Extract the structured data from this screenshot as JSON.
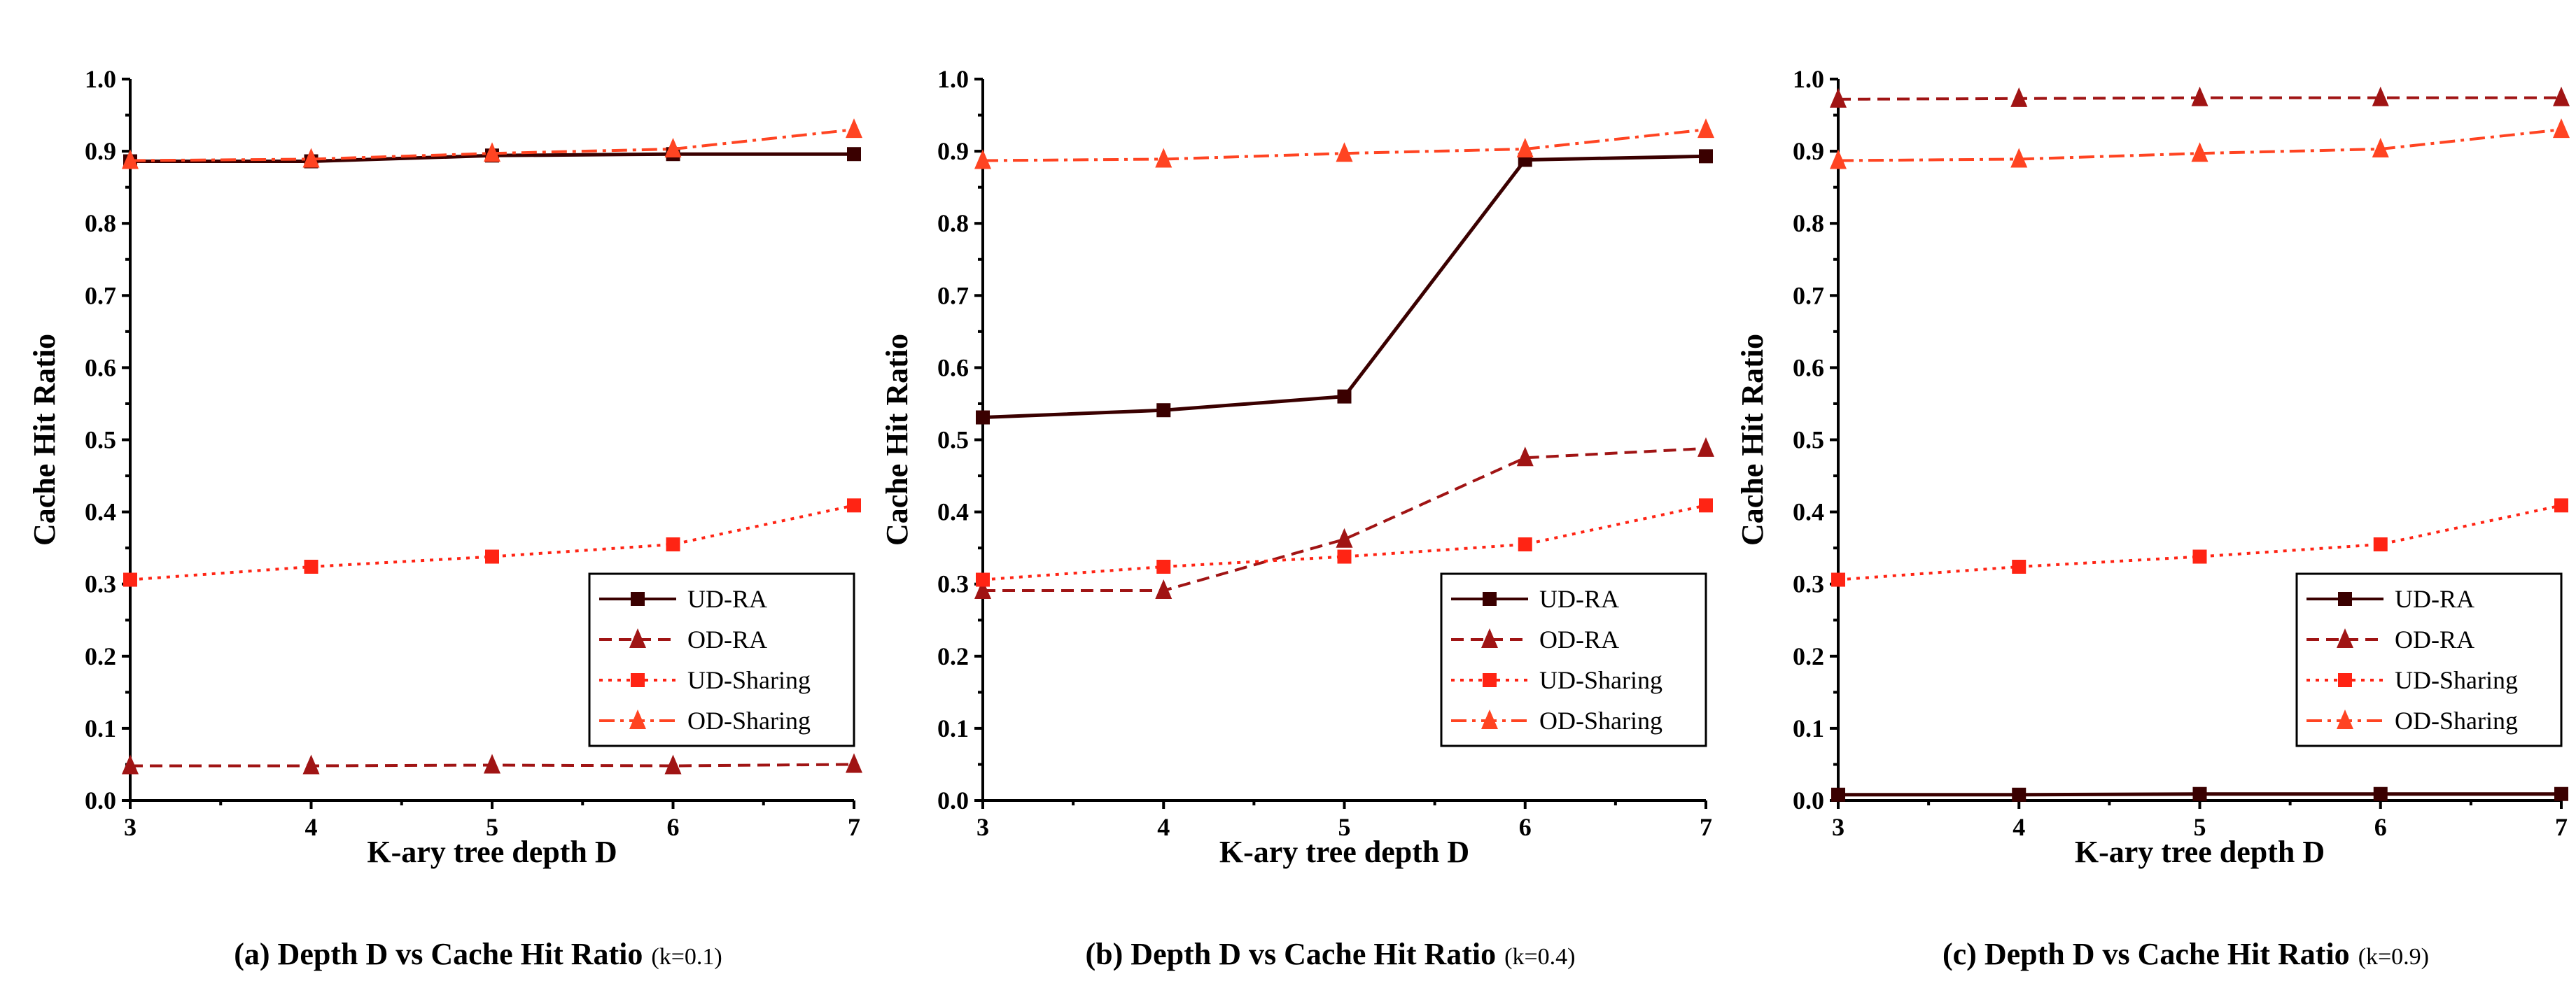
{
  "chart_data": [
    {
      "type": "line",
      "caption": "(a) Depth D vs Cache Hit Ratio",
      "caption_param": "(k=0.1)",
      "xlabel": "K-ary tree depth D",
      "ylabel": "Cache Hit Ratio",
      "x": [
        3,
        4,
        5,
        6,
        7
      ],
      "xlim": [
        3,
        7
      ],
      "ylim": [
        0,
        1.0
      ],
      "yticks": [
        "0.0",
        "0.1",
        "0.2",
        "0.3",
        "0.4",
        "0.5",
        "0.6",
        "0.7",
        "0.8",
        "0.9",
        "1.0"
      ],
      "xticks": [
        "3",
        "4",
        "5",
        "6",
        "7"
      ],
      "legend_position": "lower-right",
      "series": [
        {
          "name": "UD-RA",
          "values": [
            0.886,
            0.886,
            0.894,
            0.896,
            0.896
          ]
        },
        {
          "name": "OD-RA",
          "values": [
            0.048,
            0.048,
            0.049,
            0.048,
            0.05
          ]
        },
        {
          "name": "UD-Sharing",
          "values": [
            0.306,
            0.324,
            0.338,
            0.355,
            0.409
          ]
        },
        {
          "name": "OD-Sharing",
          "values": [
            0.887,
            0.889,
            0.897,
            0.903,
            0.93
          ]
        }
      ]
    },
    {
      "type": "line",
      "caption": "(b) Depth D vs Cache Hit Ratio",
      "caption_param": "(k=0.4)",
      "xlabel": "K-ary tree depth D",
      "ylabel": "Cache Hit Ratio",
      "x": [
        3,
        4,
        5,
        6,
        7
      ],
      "xlim": [
        3,
        7
      ],
      "ylim": [
        0,
        1.0
      ],
      "yticks": [
        "0.0",
        "0.1",
        "0.2",
        "0.3",
        "0.4",
        "0.5",
        "0.6",
        "0.7",
        "0.8",
        "0.9",
        "1.0"
      ],
      "xticks": [
        "3",
        "4",
        "5",
        "6",
        "7"
      ],
      "legend_position": "lower-right",
      "series": [
        {
          "name": "UD-RA",
          "values": [
            0.531,
            0.541,
            0.56,
            0.888,
            0.893
          ]
        },
        {
          "name": "OD-RA",
          "values": [
            0.291,
            0.291,
            0.362,
            0.475,
            0.488
          ]
        },
        {
          "name": "UD-Sharing",
          "values": [
            0.306,
            0.324,
            0.338,
            0.355,
            0.409
          ]
        },
        {
          "name": "OD-Sharing",
          "values": [
            0.887,
            0.889,
            0.897,
            0.903,
            0.93
          ]
        }
      ]
    },
    {
      "type": "line",
      "caption": "(c) Depth D vs Cache Hit Ratio",
      "caption_param": "(k=0.9)",
      "xlabel": "K-ary tree depth D",
      "ylabel": "Cache Hit Ratio",
      "x": [
        3,
        4,
        5,
        6,
        7
      ],
      "xlim": [
        3,
        7
      ],
      "ylim": [
        0,
        1.0
      ],
      "yticks": [
        "0.0",
        "0.1",
        "0.2",
        "0.3",
        "0.4",
        "0.5",
        "0.6",
        "0.7",
        "0.8",
        "0.9",
        "1.0"
      ],
      "xticks": [
        "3",
        "4",
        "5",
        "6",
        "7"
      ],
      "legend_position": "lower-right",
      "series": [
        {
          "name": "UD-RA",
          "values": [
            0.008,
            0.008,
            0.009,
            0.009,
            0.009
          ]
        },
        {
          "name": "OD-RA",
          "values": [
            0.972,
            0.973,
            0.974,
            0.974,
            0.974
          ]
        },
        {
          "name": "UD-Sharing",
          "values": [
            0.306,
            0.324,
            0.338,
            0.355,
            0.409
          ]
        },
        {
          "name": "OD-Sharing",
          "values": [
            0.887,
            0.889,
            0.897,
            0.903,
            0.93
          ]
        }
      ]
    }
  ],
  "series_styles": {
    "UD-RA": {
      "color": "#3a0000",
      "marker": "square"
    },
    "OD-RA": {
      "color": "#a01414",
      "marker": "triangle"
    },
    "UD-Sharing": {
      "color": "#ff2414",
      "marker": "square"
    },
    "OD-Sharing": {
      "color": "#ff4422",
      "marker": "triangle"
    }
  }
}
